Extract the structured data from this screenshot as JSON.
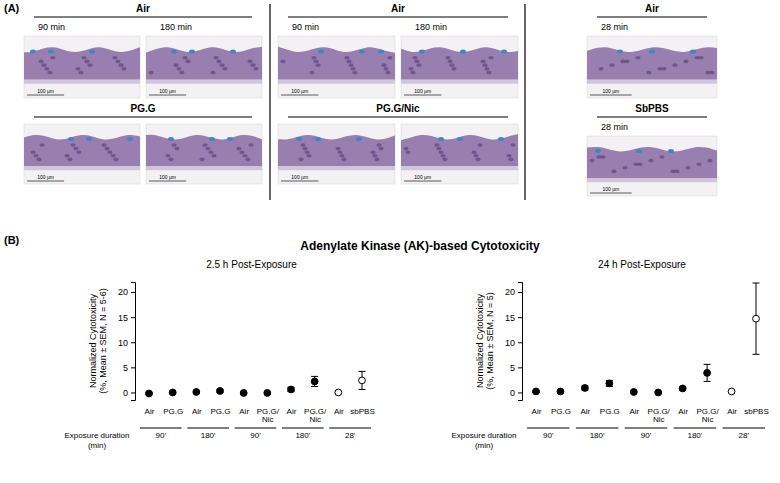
{
  "figure": {
    "panel_labels": [
      "(A)",
      "(B)"
    ],
    "panel_b_title": "Adenylate Kinase (AK)-based Cytotoxicity"
  },
  "panel_a": {
    "groups": [
      {
        "rows": [
          {
            "label": "Air",
            "times": [
              "90 min",
              "180 min"
            ],
            "scale_labels": [
              "100 µm",
              "100 µm"
            ]
          },
          {
            "label": "PG.G",
            "scale_labels": [
              "100 µm",
              "100 µm"
            ]
          }
        ]
      },
      {
        "rows": [
          {
            "label": "Air",
            "times": [
              "90 min",
              "180 min"
            ],
            "scale_labels": [
              "100 µm",
              "100 µm"
            ]
          },
          {
            "label": "PG.G/Nic",
            "scale_labels": [
              "100 µm",
              "100 µm"
            ]
          }
        ]
      },
      {
        "rows": [
          {
            "label": "Air",
            "times": [
              "28 min"
            ],
            "scale_labels": [
              "100 µm"
            ]
          },
          {
            "label": "SbPBS",
            "times": [
              "28 min"
            ],
            "scale_labels": [
              "100 µm"
            ]
          }
        ]
      }
    ]
  },
  "chart_data": [
    {
      "type": "scatter",
      "title": "2.5 h Post-Exposure",
      "ylabel": [
        "Normalized Cytotoxicity",
        "(%, Mean ± SEM, N = 5-6)"
      ],
      "categories": [
        "Air",
        "PG.G",
        "Air",
        "PG.G",
        "Air",
        "PG.G/Nic",
        "Air",
        "PG.G/Nic",
        "Air",
        "sbPBS"
      ],
      "category_groups": [
        "90'",
        "90'",
        "180'",
        "180'",
        "90'",
        "90'",
        "180'",
        "180'",
        "28'",
        "28'"
      ],
      "group_axis_label": [
        "Exposure duration",
        "(min)"
      ],
      "ylim": [
        -1.5,
        22
      ],
      "yticks": [
        0,
        5,
        10,
        15,
        20
      ],
      "series": [
        {
          "color": "#000000",
          "marker": "circle",
          "values": [
            -0.2,
            0.0,
            0.1,
            0.3,
            -0.1,
            -0.1,
            0.6,
            2.2,
            null,
            null
          ],
          "errors": [
            0.2,
            0.2,
            0.2,
            0.3,
            0.2,
            0.2,
            0.4,
            1.0,
            null,
            null
          ]
        },
        {
          "color": "#000000",
          "marker": "open_circle",
          "values": [
            null,
            null,
            null,
            null,
            null,
            null,
            null,
            null,
            0.0,
            2.4
          ],
          "errors": [
            null,
            null,
            null,
            null,
            null,
            null,
            null,
            null,
            0.2,
            1.8
          ]
        }
      ]
    },
    {
      "type": "scatter",
      "title": "24 h Post-Exposure",
      "ylabel": [
        "Normalized Cytotoxicity",
        "(%, Mean ± SEM, N = 5)"
      ],
      "categories": [
        "Air",
        "PG.G",
        "Air",
        "PG.G",
        "Air",
        "PG.G/Nic",
        "Air",
        "PG.G/Nic",
        "Air",
        "sbPBS"
      ],
      "category_groups": [
        "90'",
        "90'",
        "180'",
        "180'",
        "90'",
        "90'",
        "180'",
        "180'",
        "28'",
        "28'"
      ],
      "group_axis_label": [
        "Exposure duration",
        "(min)"
      ],
      "ylim": [
        -1.5,
        22
      ],
      "yticks": [
        0,
        5,
        10,
        15,
        20
      ],
      "series": [
        {
          "color": "#000000",
          "marker": "circle",
          "values": [
            0.2,
            0.2,
            0.9,
            1.8,
            0.1,
            0.0,
            0.8,
            3.9,
            null,
            null
          ],
          "errors": [
            0.2,
            0.2,
            0.4,
            0.6,
            0.2,
            0.2,
            0.3,
            1.7,
            null,
            null
          ]
        },
        {
          "color": "#000000",
          "marker": "open_circle",
          "values": [
            null,
            null,
            null,
            null,
            null,
            null,
            null,
            null,
            0.2,
            14.7
          ],
          "errors": [
            null,
            null,
            null,
            null,
            null,
            null,
            null,
            null,
            0.1,
            7.1
          ]
        }
      ]
    }
  ]
}
